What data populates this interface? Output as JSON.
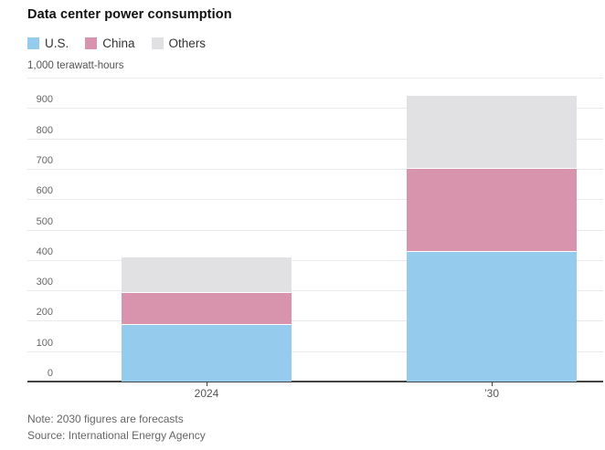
{
  "title": "Data center power consumption",
  "legend": {
    "items": [
      {
        "label": "U.S.",
        "color": "#95cbec"
      },
      {
        "label": "China",
        "color": "#d893ad"
      },
      {
        "label": "Others",
        "color": "#e1e1e3"
      }
    ]
  },
  "axis": {
    "unit_label": "1,000 terawatt-hours"
  },
  "footer": {
    "note": "Note: 2030 figures are forecasts",
    "source": "Source: International Energy Agency"
  },
  "chart_data": {
    "type": "bar",
    "stacked": true,
    "categories": [
      "2024",
      "’30"
    ],
    "series": [
      {
        "name": "U.S.",
        "color": "#95cbec",
        "values": [
          185,
          425
        ]
      },
      {
        "name": "China",
        "color": "#d893ad",
        "values": [
          105,
          275
        ]
      },
      {
        "name": "Others",
        "color": "#e1e1e3",
        "values": [
          118,
          240
        ]
      }
    ],
    "stack_totals": [
      408,
      940
    ],
    "title": "Data center power consumption",
    "xlabel": "",
    "ylabel": "1,000 terawatt-hours",
    "ylim": [
      0,
      1000
    ],
    "ytick_interval": 100,
    "grid": true,
    "legend_position": "top-left",
    "style_colors": {
      "grid": "#e9e9e9",
      "axis": "#444444",
      "tick_text": "#666666"
    }
  }
}
